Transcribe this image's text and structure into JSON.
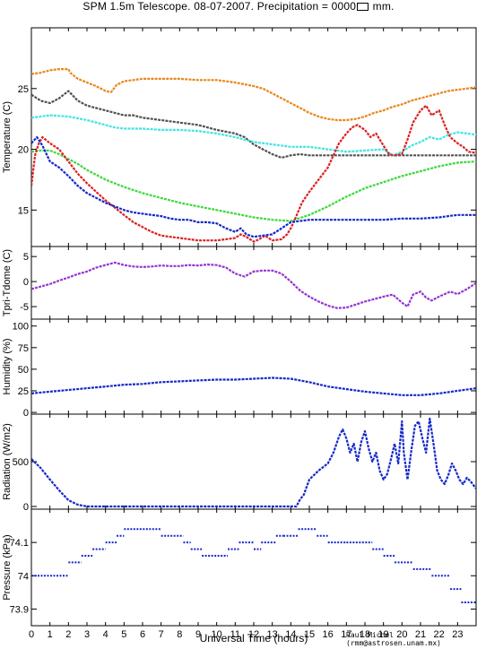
{
  "title": "SPM 1.5m Telescope. 08-07-2007. Precipitation = 0000",
  "title_unit": "mm.",
  "credit": "Raul Michel (rmm@astrosen.unam.mx)",
  "xlabel": "Universal Time (hours)",
  "xticks": [
    "0",
    "1",
    "2",
    "3",
    "4",
    "5",
    "6",
    "7",
    "8",
    "9",
    "10",
    "11",
    "12",
    "13",
    "14",
    "15",
    "16",
    "17",
    "18",
    "19",
    "20",
    "21",
    "22",
    "23"
  ],
  "colors": {
    "orange": "#e8861a",
    "gray": "#505050",
    "cyan": "#3ee4e4",
    "green": "#3cd83c",
    "red": "#dc2020",
    "blue": "#1428c8",
    "purple": "#9632d2"
  },
  "chart_data": [
    {
      "type": "line",
      "ylabel": "Temperature (C)",
      "xlim": [
        0,
        24
      ],
      "ylim": [
        12,
        30
      ],
      "yticks": [
        15,
        20,
        25
      ],
      "series": [
        {
          "color": "orange",
          "x": [
            0,
            0.5,
            1,
            1.5,
            2,
            2.1,
            2.5,
            3,
            3.5,
            4,
            4.3,
            4.6,
            5,
            5.5,
            6,
            7,
            8,
            9,
            10,
            11,
            12,
            12.5,
            13,
            13.5,
            14,
            14.5,
            15,
            15.5,
            16,
            16.5,
            17,
            17.5,
            18,
            18.5,
            19,
            19.5,
            20,
            20.5,
            21,
            21.5,
            22,
            22.5,
            23,
            23.5,
            24
          ],
          "y": [
            26.2,
            26.3,
            26.5,
            26.6,
            26.6,
            26.3,
            25.8,
            25.5,
            25.2,
            24.8,
            24.7,
            25.3,
            25.6,
            25.7,
            25.8,
            25.8,
            25.8,
            25.7,
            25.7,
            25.5,
            25.2,
            25.0,
            24.6,
            24.2,
            23.8,
            23.4,
            23.0,
            22.7,
            22.5,
            22.4,
            22.4,
            22.5,
            22.7,
            23.0,
            23.2,
            23.5,
            23.7,
            24.0,
            24.2,
            24.4,
            24.6,
            24.8,
            24.9,
            25.0,
            25.1
          ]
        },
        {
          "color": "gray",
          "x": [
            0,
            0.5,
            1,
            1.5,
            2,
            2.5,
            3,
            3.5,
            4,
            4.5,
            5,
            5.5,
            6,
            7,
            8,
            9,
            10,
            11,
            11.5,
            12,
            12.5,
            13,
            13.5,
            14,
            14.5,
            15,
            16,
            17,
            18,
            19,
            20,
            21,
            22,
            23,
            24
          ],
          "y": [
            24.5,
            24.0,
            23.8,
            24.2,
            24.8,
            24.0,
            23.6,
            23.4,
            23.2,
            23.0,
            22.8,
            22.8,
            22.6,
            22.4,
            22.2,
            22.0,
            21.6,
            21.3,
            21.0,
            20.4,
            20.0,
            19.6,
            19.3,
            19.5,
            19.6,
            19.5,
            19.5,
            19.5,
            19.5,
            19.5,
            19.5,
            19.5,
            19.5,
            19.5,
            19.5
          ]
        },
        {
          "color": "cyan",
          "x": [
            0,
            1,
            2,
            3,
            3.5,
            4,
            4.5,
            5,
            6,
            7,
            8,
            9,
            10,
            11,
            11.5,
            12,
            13,
            14,
            15,
            16,
            17,
            18,
            19,
            19.5,
            20,
            20.5,
            21,
            21.5,
            22,
            22.5,
            23,
            23.5,
            24
          ],
          "y": [
            22.6,
            22.8,
            22.7,
            22.4,
            22.2,
            22.0,
            21.8,
            21.7,
            21.7,
            21.6,
            21.6,
            21.5,
            21.3,
            21.0,
            20.8,
            20.6,
            20.4,
            20.2,
            20.2,
            20.0,
            19.8,
            19.9,
            20.0,
            19.5,
            19.8,
            20.3,
            20.6,
            21.0,
            20.8,
            21.2,
            21.4,
            21.3,
            21.2
          ]
        },
        {
          "color": "green",
          "x": [
            0,
            0.5,
            1,
            1.5,
            2,
            2.5,
            3,
            3.5,
            4,
            5,
            6,
            7,
            8,
            9,
            10,
            11,
            12,
            13,
            14,
            15,
            16,
            17,
            18,
            19,
            20,
            21,
            22,
            23,
            24
          ],
          "y": [
            19.8,
            19.9,
            19.9,
            19.6,
            19.2,
            18.8,
            18.3,
            17.9,
            17.5,
            16.9,
            16.4,
            16.0,
            15.6,
            15.3,
            15.0,
            14.7,
            14.4,
            14.2,
            14.1,
            14.6,
            15.3,
            16.1,
            16.8,
            17.3,
            17.8,
            18.2,
            18.6,
            18.9,
            19.0
          ]
        },
        {
          "color": "red",
          "x": [
            0,
            0.2,
            0.4,
            0.6,
            1,
            1.5,
            2,
            2.5,
            3,
            3.5,
            4,
            4.5,
            5,
            5.5,
            6,
            6.5,
            7,
            7.5,
            8,
            8.5,
            9,
            9.5,
            10,
            10.5,
            11,
            11.3,
            11.6,
            12,
            12.3,
            12.6,
            13,
            13.5,
            13.8,
            14,
            14.3,
            14.6,
            15,
            15.5,
            16,
            16.3,
            16.6,
            17,
            17.3,
            17.6,
            18,
            18.3,
            18.6,
            19,
            19.3,
            19.6,
            20,
            20.3,
            20.6,
            21,
            21.3,
            21.6,
            22,
            22.3,
            22.6,
            23,
            23.3,
            23.6,
            24
          ],
          "y": [
            17.0,
            19.5,
            20.5,
            21.0,
            20.5,
            20.0,
            19.0,
            18.0,
            17.2,
            16.5,
            15.8,
            15.2,
            14.6,
            14.0,
            13.6,
            13.2,
            12.9,
            12.8,
            12.7,
            12.6,
            12.5,
            12.5,
            12.5,
            12.6,
            12.7,
            13.0,
            12.8,
            12.4,
            12.6,
            12.9,
            12.5,
            12.6,
            13.0,
            13.5,
            14.5,
            15.6,
            16.5,
            17.5,
            18.5,
            19.5,
            20.5,
            21.3,
            21.8,
            22.0,
            21.6,
            21.0,
            21.3,
            20.3,
            19.6,
            19.5,
            19.6,
            20.8,
            22.2,
            23.2,
            23.6,
            22.8,
            23.2,
            22.0,
            21.0,
            20.5,
            20.2,
            19.8,
            19.7
          ]
        },
        {
          "color": "blue",
          "x": [
            0,
            0.3,
            0.6,
            1,
            1.5,
            2,
            2.5,
            3,
            3.5,
            4,
            4.5,
            5,
            5.5,
            6,
            6.5,
            7,
            7.5,
            8,
            8.5,
            9,
            9.5,
            10,
            10.5,
            11,
            11.3,
            11.6,
            12,
            12.5,
            13,
            13.5,
            14,
            14.5,
            15,
            16,
            17,
            18,
            19,
            20,
            21,
            22,
            22.5,
            23,
            24
          ],
          "y": [
            20.5,
            21.0,
            20.3,
            19.0,
            18.5,
            17.8,
            17.0,
            16.4,
            16.0,
            15.6,
            15.3,
            15.0,
            14.8,
            14.7,
            14.6,
            14.5,
            14.3,
            14.2,
            14.2,
            14.0,
            14.0,
            13.9,
            13.5,
            13.2,
            13.5,
            13.0,
            12.8,
            12.9,
            13.0,
            13.5,
            14.0,
            14.1,
            14.2,
            14.2,
            14.2,
            14.2,
            14.2,
            14.3,
            14.3,
            14.4,
            14.5,
            14.6,
            14.6
          ]
        }
      ]
    },
    {
      "type": "line",
      "ylabel": "Tpri-Tdome (C)",
      "xlim": [
        0,
        24
      ],
      "ylim": [
        -7.5,
        7
      ],
      "yticks": [
        -5,
        0,
        5
      ],
      "series": [
        {
          "color": "purple",
          "x": [
            0,
            0.5,
            1,
            1.5,
            2,
            2.5,
            3,
            3.5,
            4,
            4.5,
            5,
            5.5,
            6,
            6.5,
            7,
            7.5,
            8,
            8.5,
            9,
            9.5,
            10,
            10.5,
            11,
            11.5,
            12,
            12.5,
            13,
            13.5,
            14,
            14.5,
            15,
            15.5,
            16,
            16.5,
            17,
            17.5,
            18,
            18.5,
            19,
            19.5,
            20,
            20.3,
            20.6,
            21,
            21.3,
            21.6,
            22,
            22.3,
            22.6,
            23,
            23.5,
            24
          ],
          "y": [
            -1.5,
            -1.0,
            -0.5,
            0.2,
            0.8,
            1.5,
            2.0,
            2.8,
            3.3,
            3.8,
            3.3,
            3.0,
            2.9,
            3.0,
            3.2,
            3.1,
            3.1,
            3.3,
            3.2,
            3.4,
            3.3,
            2.8,
            1.6,
            1.0,
            2.0,
            2.2,
            2.2,
            1.6,
            0.0,
            -1.8,
            -3.0,
            -4.0,
            -4.8,
            -5.3,
            -5.2,
            -4.6,
            -4.0,
            -3.5,
            -3.0,
            -2.6,
            -4.2,
            -5.0,
            -2.6,
            -2.0,
            -3.2,
            -3.8,
            -3.0,
            -2.5,
            -2.0,
            -2.5,
            -1.5,
            -0.3
          ]
        }
      ]
    },
    {
      "type": "line",
      "ylabel": "Humidity (%)",
      "xlim": [
        0,
        24
      ],
      "ylim": [
        -2,
        108
      ],
      "yticks": [
        0,
        25,
        50,
        75,
        100
      ],
      "ytick_labels": [
        "0",
        "25",
        "50",
        "75",
        "100"
      ],
      "series": [
        {
          "color": "blue",
          "x": [
            0,
            1,
            2,
            3,
            4,
            5,
            6,
            7,
            8,
            9,
            10,
            11,
            12,
            13,
            14,
            15,
            16,
            17,
            18,
            19,
            20,
            21,
            22,
            23,
            24
          ],
          "y": [
            22,
            24,
            26,
            28,
            30,
            32,
            33,
            35,
            36,
            37,
            38,
            38,
            39,
            40,
            39,
            35,
            30,
            27,
            24,
            22,
            20,
            20,
            22,
            25,
            28
          ]
        }
      ]
    },
    {
      "type": "line",
      "ylabel": "Radiation (W/m2)",
      "xlim": [
        0,
        24
      ],
      "ylim": [
        -30,
        1030
      ],
      "yticks": [
        0,
        500
      ],
      "series": [
        {
          "color": "blue",
          "x": [
            0,
            0.2,
            0.5,
            1,
            1.5,
            2,
            2.5,
            3,
            4,
            6,
            8,
            10,
            12,
            14,
            14.3,
            14.5,
            14.7,
            15,
            15.5,
            16,
            16.3,
            16.6,
            16.8,
            17,
            17.2,
            17.4,
            17.6,
            17.8,
            18,
            18.2,
            18.4,
            18.6,
            18.8,
            19,
            19.2,
            19.4,
            19.6,
            19.8,
            20,
            20.1,
            20.3,
            20.5,
            20.7,
            20.9,
            21.1,
            21.3,
            21.5,
            21.7,
            21.9,
            22.1,
            22.3,
            22.5,
            22.7,
            22.9,
            23.1,
            23.3,
            23.5,
            23.7,
            24
          ],
          "y": [
            530,
            490,
            430,
            300,
            180,
            70,
            20,
            0,
            0,
            0,
            0,
            0,
            0,
            0,
            0,
            80,
            130,
            300,
            400,
            480,
            600,
            780,
            860,
            760,
            600,
            700,
            500,
            720,
            840,
            650,
            500,
            600,
            400,
            300,
            360,
            520,
            700,
            480,
            950,
            600,
            300,
            620,
            900,
            950,
            760,
            600,
            980,
            700,
            400,
            300,
            250,
            350,
            480,
            400,
            300,
            250,
            320,
            280,
            200
          ]
        }
      ]
    },
    {
      "type": "scatter",
      "ylabel": "Pressure (kPa)",
      "xlim": [
        0,
        24
      ],
      "ylim": [
        73.85,
        74.2
      ],
      "yticks": [
        73.9,
        74,
        74.1
      ],
      "ytick_labels": [
        "73.9",
        "74",
        "74.1"
      ],
      "series": [
        {
          "color": "blue",
          "segments": [
            [
              0,
              2.0,
              74.0
            ],
            [
              2.0,
              2.7,
              74.04
            ],
            [
              2.7,
              3.3,
              74.06
            ],
            [
              3.3,
              4.0,
              74.08
            ],
            [
              4.0,
              4.6,
              74.1
            ],
            [
              4.6,
              5.0,
              74.12
            ],
            [
              5.0,
              7.0,
              74.14
            ],
            [
              7.0,
              8.2,
              74.12
            ],
            [
              8.2,
              8.6,
              74.1
            ],
            [
              8.6,
              9.2,
              74.08
            ],
            [
              9.2,
              10.6,
              74.06
            ],
            [
              10.6,
              11.2,
              74.08
            ],
            [
              11.2,
              12.0,
              74.1
            ],
            [
              12.0,
              12.4,
              74.08
            ],
            [
              12.4,
              13.2,
              74.1
            ],
            [
              13.2,
              13.6,
              74.12
            ],
            [
              13.6,
              14.4,
              74.12
            ],
            [
              14.4,
              15.4,
              74.14
            ],
            [
              15.4,
              16.0,
              74.12
            ],
            [
              16.0,
              17.0,
              74.1
            ],
            [
              17.0,
              18.4,
              74.1
            ],
            [
              18.4,
              19.0,
              74.08
            ],
            [
              19.0,
              19.6,
              74.06
            ],
            [
              19.6,
              20.6,
              74.04
            ],
            [
              20.6,
              21.6,
              74.02
            ],
            [
              21.6,
              22.6,
              74.0
            ],
            [
              22.6,
              23.2,
              73.96
            ],
            [
              23.2,
              24.0,
              73.92
            ]
          ]
        }
      ]
    }
  ]
}
